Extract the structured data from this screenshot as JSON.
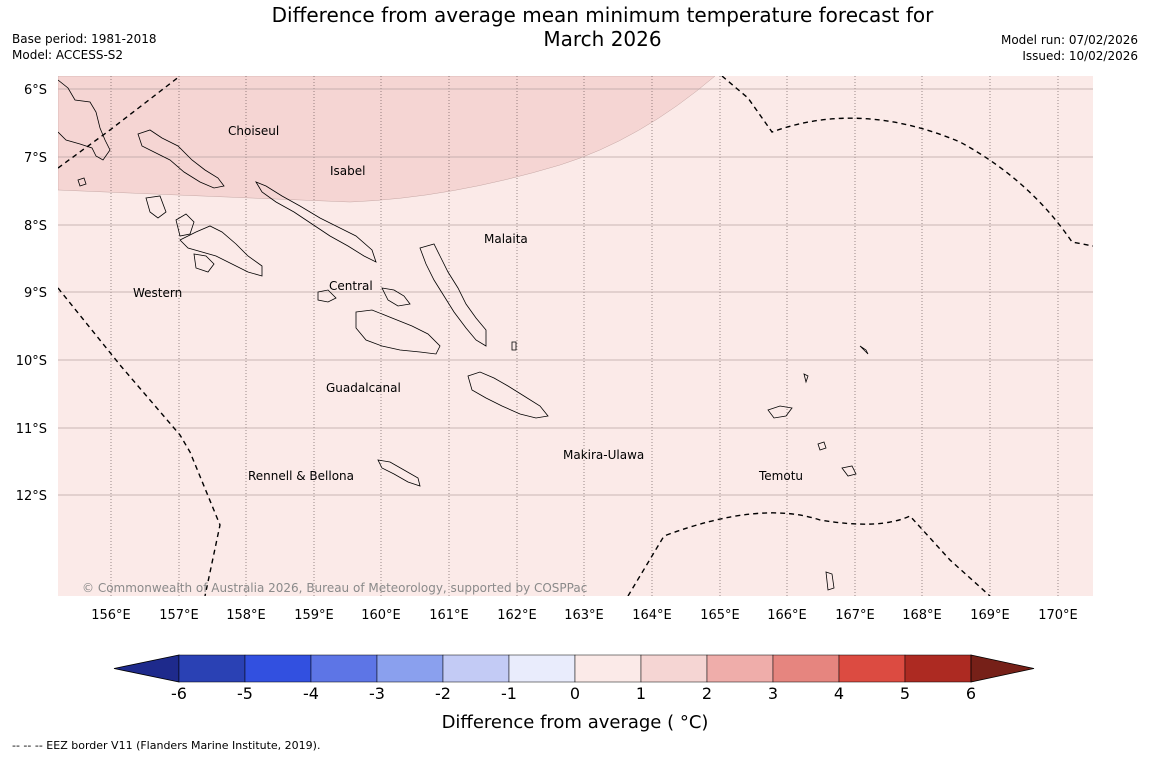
{
  "header": {
    "title_line1": "Difference from average mean minimum temperature forecast for",
    "title_line2": "March 2026",
    "base_period": "Base period: 1981-2018",
    "model": "Model: ACCESS-S2",
    "model_run": "Model run: 07/02/2026",
    "issued": "Issued: 10/02/2026"
  },
  "map": {
    "lon_ticks": [
      "156°E",
      "157°E",
      "158°E",
      "159°E",
      "160°E",
      "161°E",
      "162°E",
      "163°E",
      "164°E",
      "165°E",
      "166°E",
      "167°E",
      "168°E",
      "169°E",
      "170°E"
    ],
    "lat_ticks": [
      "6°S",
      "7°S",
      "8°S",
      "9°S",
      "10°S",
      "11°S",
      "12°S"
    ],
    "regions": [
      "Choiseul",
      "Isabel",
      "Malaita",
      "Western",
      "Central",
      "Guadalcanal",
      "Makira-Ulawa",
      "Rennell & Bellona",
      "Temotu"
    ],
    "copyright": "© Commonwealth of Australia 2026, Bureau of Meteorology, supported by COSPPac",
    "anomaly_zones": [
      {
        "range": "1 to 2 °C",
        "area": "north-west corner"
      },
      {
        "range": "0 to 1 °C",
        "area": "remainder of map"
      }
    ]
  },
  "colorbar": {
    "label": "Difference from average ( °C)",
    "ticks": [
      "-6",
      "-5",
      "-4",
      "-3",
      "-2",
      "-1",
      "0",
      "1",
      "2",
      "3",
      "4",
      "5",
      "6"
    ],
    "colors": [
      "#1e2a8c",
      "#2a41b4",
      "#3250e0",
      "#5d75e6",
      "#8aa0ee",
      "#c3cbf5",
      "#e9ecfc",
      "#fbeae8",
      "#f5d5d3",
      "#efadaa",
      "#e6857f",
      "#dc4b41",
      "#ad2a22",
      "#762018"
    ]
  },
  "footer": {
    "legend": "--  --  -- EEZ border V11 (Flanders Marine Institute, 2019)."
  }
}
